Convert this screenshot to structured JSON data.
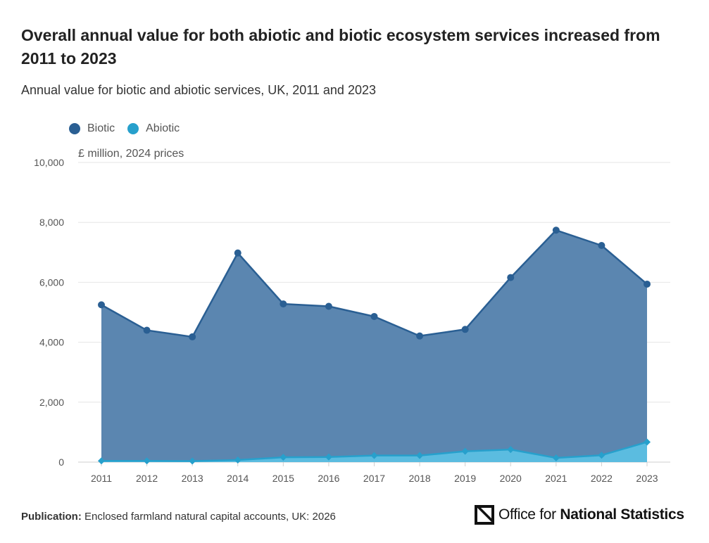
{
  "title": "Overall annual value for both abiotic and biotic ecosystem services increased from 2011 to 2023",
  "subtitle": "Annual value for biotic and abiotic services, UK, 2011 and 2023",
  "units_label": "£ million, 2024 prices",
  "footer": {
    "publication_label": "Publication:",
    "publication_value": "Enclosed farmland natural capital accounts, UK: 2026"
  },
  "logo": {
    "prefix": "Office for ",
    "bold": "National Statistics",
    "icon": "ons-logo-icon"
  },
  "colors": {
    "biotic_line": "#2a5f93",
    "biotic_fill": "#5b86b0",
    "abiotic_line": "#27a0cc",
    "abiotic_fill": "#5bbce0",
    "grid": "#e6e6e6",
    "axis_text": "#555555"
  },
  "chart_data": {
    "type": "area",
    "categories": [
      "2011",
      "2012",
      "2013",
      "2014",
      "2015",
      "2016",
      "2017",
      "2018",
      "2019",
      "2020",
      "2021",
      "2022",
      "2023"
    ],
    "series": [
      {
        "name": "Biotic",
        "values": [
          5250,
          4400,
          4180,
          6980,
          5280,
          5200,
          4860,
          4210,
          4430,
          6160,
          7740,
          7230,
          5940
        ]
      },
      {
        "name": "Abiotic",
        "values": [
          40,
          40,
          35,
          70,
          160,
          170,
          220,
          220,
          360,
          420,
          140,
          230,
          670
        ]
      }
    ],
    "ylim": [
      0,
      10000
    ],
    "yticks": [
      "0",
      "2,000",
      "4,000",
      "6,000",
      "8,000",
      "10,000"
    ],
    "ytick_values": [
      0,
      2000,
      4000,
      6000,
      8000,
      10000
    ],
    "grid": true,
    "legend": "top-left"
  }
}
